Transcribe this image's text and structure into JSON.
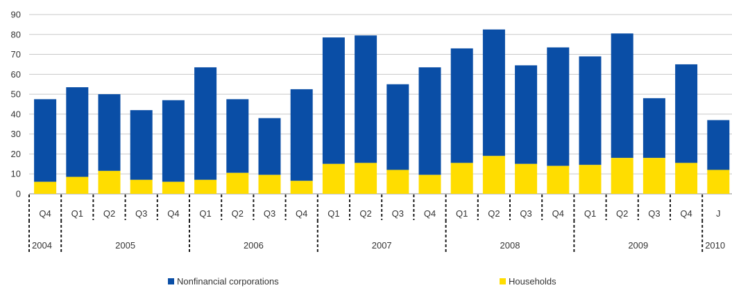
{
  "chart_data": {
    "type": "bar",
    "stacked": true,
    "title": "",
    "xlabel": "",
    "ylabel": "",
    "ylim": [
      0,
      90
    ],
    "yticks": [
      0,
      10,
      20,
      30,
      40,
      50,
      60,
      70,
      80,
      90
    ],
    "grid": true,
    "legend_position": "bottom",
    "categories": [
      "Q4",
      "Q1",
      "Q2",
      "Q3",
      "Q4",
      "Q1",
      "Q2",
      "Q3",
      "Q4",
      "Q1",
      "Q2",
      "Q3",
      "Q4",
      "Q1",
      "Q2",
      "Q3",
      "Q4",
      "Q1",
      "Q2",
      "Q3",
      "Q4",
      "J"
    ],
    "year_groups": [
      {
        "label": "2004",
        "count": 1
      },
      {
        "label": "2005",
        "count": 4
      },
      {
        "label": "2006",
        "count": 4
      },
      {
        "label": "2007",
        "count": 4
      },
      {
        "label": "2008",
        "count": 4
      },
      {
        "label": "2009",
        "count": 4
      },
      {
        "label": "2010",
        "count": 1
      }
    ],
    "series": [
      {
        "name": "Households",
        "color": "#ffdd00",
        "values": [
          6,
          8.5,
          11.5,
          7,
          6,
          7,
          10.5,
          9.5,
          6.5,
          15,
          15.5,
          12,
          9.5,
          15.5,
          19,
          15,
          14,
          14.5,
          18,
          18,
          15.5,
          12
        ]
      },
      {
        "name": "Nonfinancial corporations",
        "color": "#0a4ea6",
        "values": [
          41.5,
          45,
          38.5,
          35,
          41,
          56.5,
          37,
          28.5,
          46,
          63.5,
          64,
          43,
          54,
          57.5,
          63.5,
          49.5,
          59.5,
          54.5,
          62.5,
          30,
          49.5,
          25
        ]
      }
    ],
    "legend": [
      {
        "label": "Nonfinancial corporations",
        "color": "#0a4ea6"
      },
      {
        "label": "Households",
        "color": "#ffdd00"
      }
    ]
  }
}
